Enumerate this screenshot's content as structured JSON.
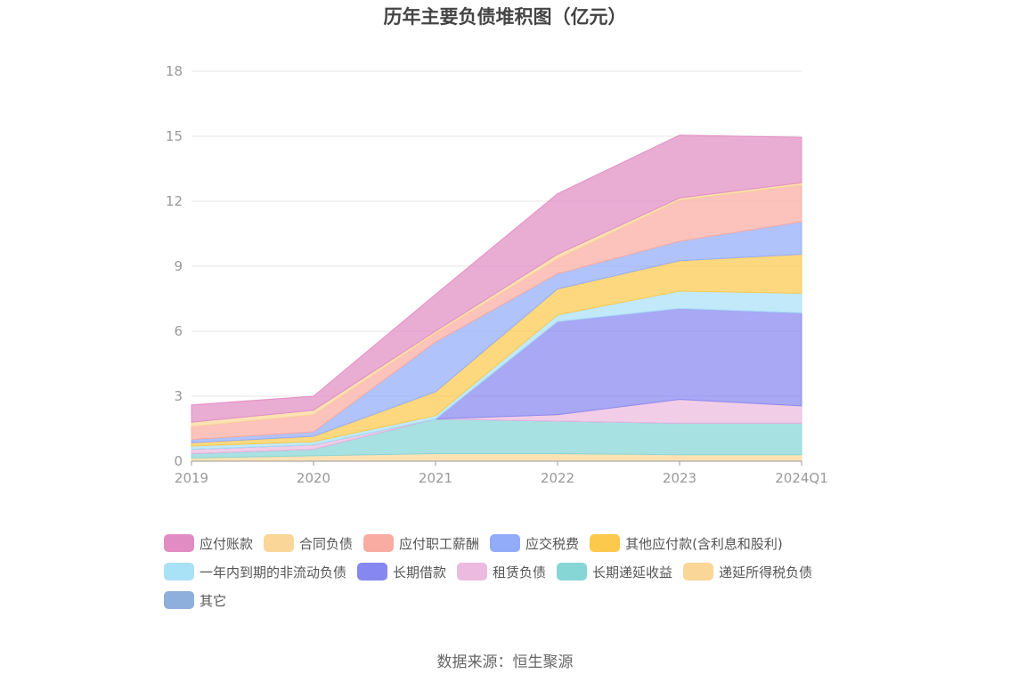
{
  "title": "历年主要负债堆积图（亿元）",
  "source": "数据来源：恒生聚源",
  "chart_data": {
    "type": "area",
    "stacked": true,
    "categories": [
      "2019",
      "2020",
      "2021",
      "2022",
      "2023",
      "2024Q1"
    ],
    "yticks": [
      "0",
      "3",
      "6",
      "9",
      "12",
      "15",
      "18"
    ],
    "ylim": [
      0,
      18
    ],
    "grid": true,
    "legend_position": "bottom",
    "series": [
      {
        "name": "其它",
        "color": "#8eaedb",
        "values": [
          0.0,
          0.0,
          0.0,
          0.0,
          0.0,
          0.0
        ]
      },
      {
        "name": "递延所得税负债",
        "color": "#fbd699",
        "values": [
          0.15,
          0.25,
          0.35,
          0.35,
          0.3,
          0.3
        ]
      },
      {
        "name": "长期递延收益",
        "color": "#86d6d6",
        "values": [
          0.2,
          0.3,
          1.6,
          1.5,
          1.45,
          1.45
        ]
      },
      {
        "name": "长期借款",
        "color": "#8687f0",
        "values": [
          0.0,
          0.0,
          0.0,
          0.0,
          0.0,
          0.0
        ]
      },
      {
        "name": "租赁负债",
        "color": "#ecbade",
        "values": [
          0.2,
          0.2,
          0.0,
          0.3,
          1.1,
          0.8
        ]
      },
      {
        "name": "长期借款",
        "color": "#8687f0",
        "values": [
          0.0,
          0.0,
          0.0,
          4.3,
          4.2,
          4.3
        ]
      },
      {
        "name": "一年内到期的非流动负债",
        "color": "#a9e1f6",
        "values": [
          0.15,
          0.15,
          0.15,
          0.3,
          0.8,
          0.9
        ]
      },
      {
        "name": "其他应付款(含利息和股利)",
        "color": "#fcc94c",
        "values": [
          0.15,
          0.25,
          1.1,
          1.2,
          1.4,
          1.8
        ]
      },
      {
        "name": "应交税费",
        "color": "#93acfa",
        "values": [
          0.15,
          0.2,
          2.3,
          0.7,
          0.9,
          1.5
        ]
      },
      {
        "name": "应付职工薪酬",
        "color": "#f9aca1",
        "values": [
          0.6,
          0.8,
          0.4,
          0.7,
          1.9,
          1.7
        ]
      },
      {
        "name": "合同负债",
        "color": "#fbd699",
        "values": [
          0.2,
          0.2,
          0.1,
          0.2,
          0.1,
          0.1
        ]
      },
      {
        "name": "应付账款",
        "color": "#e18cc2",
        "values": [
          0.8,
          0.65,
          1.7,
          2.8,
          2.9,
          2.1
        ]
      }
    ],
    "legend": [
      {
        "name": "应付账款",
        "color": "#e18cc2"
      },
      {
        "name": "合同负债",
        "color": "#fbd699"
      },
      {
        "name": "应付职工薪酬",
        "color": "#f9aca1"
      },
      {
        "name": "应交税费",
        "color": "#93acfa"
      },
      {
        "name": "其他应付款(含利息和股利)",
        "color": "#fcc94c"
      },
      {
        "name": "一年内到期的非流动负债",
        "color": "#a9e1f6"
      },
      {
        "name": "长期借款",
        "color": "#8687f0"
      },
      {
        "name": "租赁负债",
        "color": "#ecbade"
      },
      {
        "name": "长期递延收益",
        "color": "#86d6d6"
      },
      {
        "name": "递延所得税负债",
        "color": "#fbd699"
      },
      {
        "name": "其它",
        "color": "#8eaedb"
      }
    ]
  }
}
